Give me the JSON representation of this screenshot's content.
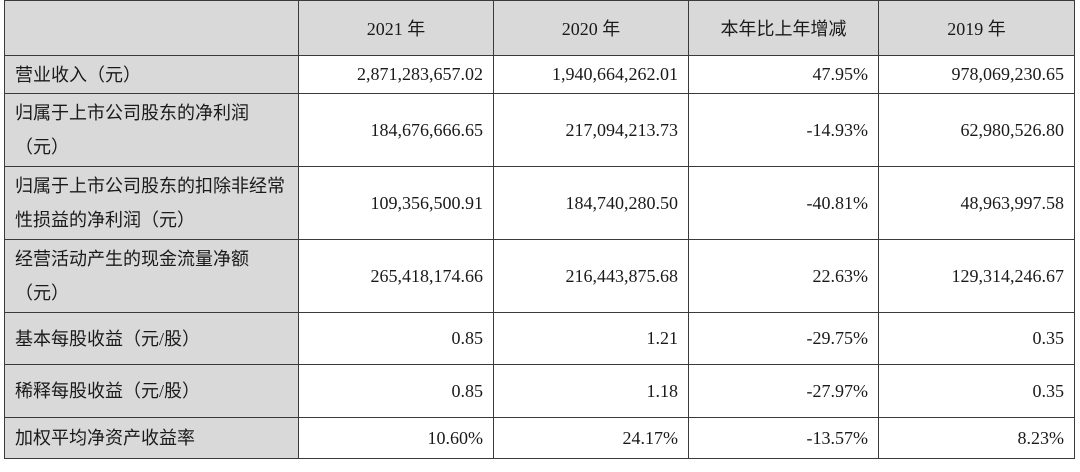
{
  "header": [
    "",
    "2021 年",
    "2020 年",
    "本年比上年增减",
    "2019 年"
  ],
  "rows": [
    {
      "label": "营业收入（元）",
      "values": [
        "2,871,283,657.02",
        "1,940,664,262.01",
        "47.95%",
        "978,069,230.65"
      ]
    },
    {
      "label": "归属于上市公司股东的净利润（元）",
      "values": [
        "184,676,666.65",
        "217,094,213.73",
        "-14.93%",
        "62,980,526.80"
      ]
    },
    {
      "label": "归属于上市公司股东的扣除非经常性损益的净利润（元）",
      "values": [
        "109,356,500.91",
        "184,740,280.50",
        "-40.81%",
        "48,963,997.58"
      ]
    },
    {
      "label": "经营活动产生的现金流量净额（元）",
      "values": [
        "265,418,174.66",
        "216,443,875.68",
        "22.63%",
        "129,314,246.67"
      ]
    },
    {
      "label": "基本每股收益（元/股）",
      "values": [
        "0.85",
        "1.21",
        "-29.75%",
        "0.35"
      ]
    },
    {
      "label": "稀释每股收益（元/股）",
      "values": [
        "0.85",
        "1.18",
        "-27.97%",
        "0.35"
      ]
    },
    {
      "label": "加权平均净资产收益率",
      "values": [
        "10.60%",
        "24.17%",
        "-13.57%",
        "8.23%"
      ]
    }
  ]
}
